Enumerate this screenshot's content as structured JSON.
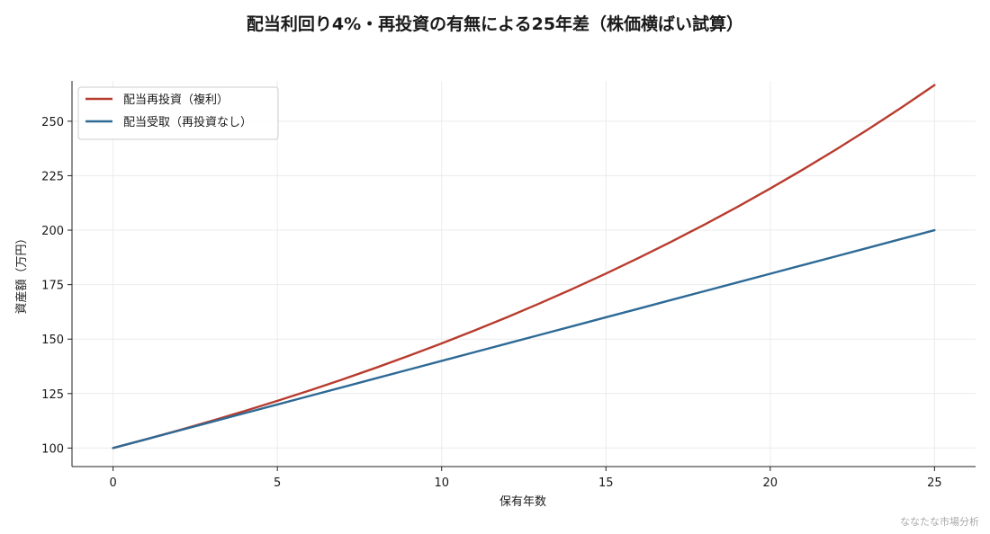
{
  "chart_data": {
    "type": "line",
    "title": "配当利回り4%・再投資の有無による25年差（株価横ばい試算）",
    "xlabel": "保有年数",
    "ylabel": "資産額（万円）",
    "xlim": [
      -1.25,
      26.25
    ],
    "ylim": [
      91.5,
      268.5
    ],
    "xticks": [
      0,
      5,
      10,
      15,
      20,
      25
    ],
    "yticks": [
      100,
      125,
      150,
      175,
      200,
      225,
      250
    ],
    "grid": true,
    "legend_position": "top-left",
    "x": [
      0,
      1,
      2,
      3,
      4,
      5,
      6,
      7,
      8,
      9,
      10,
      11,
      12,
      13,
      14,
      15,
      16,
      17,
      18,
      19,
      20,
      21,
      22,
      23,
      24,
      25
    ],
    "series": [
      {
        "name": "配当再投資（複利）",
        "color": "#b83c2e",
        "values": [
          100,
          104,
          108.16,
          112.49,
          116.99,
          121.67,
          126.53,
          131.59,
          136.86,
          142.33,
          148.02,
          153.95,
          160.1,
          166.51,
          173.17,
          180.09,
          187.3,
          194.79,
          202.58,
          210.68,
          219.11,
          227.88,
          236.99,
          246.47,
          256.33,
          266.58
        ]
      },
      {
        "name": "配当受取（再投資なし）",
        "color": "#2e6a96",
        "values": [
          100,
          104,
          108,
          112,
          116,
          120,
          124,
          128,
          132,
          136,
          140,
          144,
          148,
          152,
          156,
          160,
          164,
          168,
          172,
          176,
          180,
          184,
          188,
          192,
          196,
          200
        ]
      }
    ]
  },
  "footer": {
    "credit": "ななたな市場分析"
  }
}
